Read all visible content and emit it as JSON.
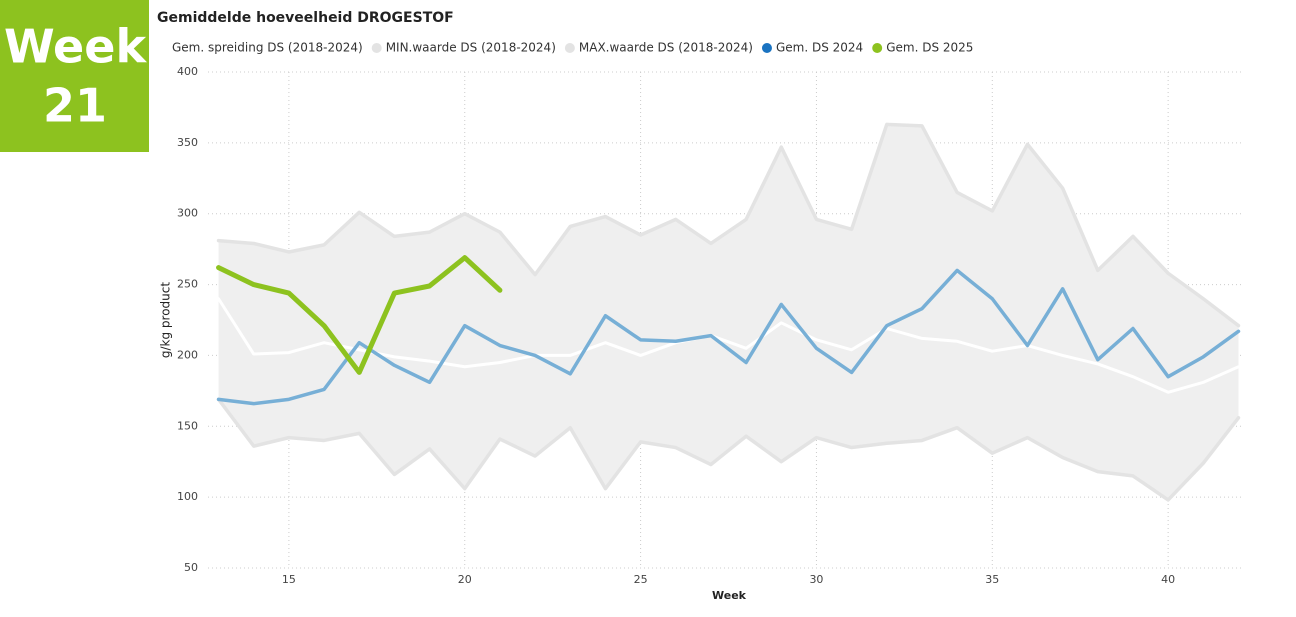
{
  "badge": {
    "word": "Week",
    "number": "21"
  },
  "chart_data": {
    "type": "line",
    "title": "Gemiddelde hoeveelheid DROGESTOF",
    "xlabel": "Week",
    "ylabel": "g/kg product",
    "x": [
      13,
      14,
      15,
      16,
      17,
      18,
      19,
      20,
      21,
      22,
      23,
      24,
      25,
      26,
      27,
      28,
      29,
      30,
      31,
      32,
      33,
      34,
      35,
      36,
      37,
      38,
      39,
      40,
      41,
      42
    ],
    "xlim": [
      12.7,
      42.1
    ],
    "xticks": [
      15,
      20,
      25,
      30,
      35,
      40
    ],
    "ylim": [
      50,
      400
    ],
    "yticks": [
      50,
      100,
      150,
      200,
      250,
      300,
      350,
      400
    ],
    "grid": true,
    "band_color": "#efefef",
    "series": [
      {
        "name": "Gem. spreiding DS (2018-2024)",
        "color": "#ffffff",
        "values": [
          240,
          201,
          202,
          209,
          204,
          199,
          196,
          192,
          195,
          200,
          200,
          209,
          200,
          209,
          214,
          205,
          223,
          211,
          204,
          219,
          212,
          210,
          203,
          207,
          200,
          194,
          185,
          174,
          181,
          192
        ]
      },
      {
        "name": "MIN.waarde DS (2018-2024)",
        "color": "#e3e3e3",
        "values": [
          169,
          136,
          142,
          140,
          145,
          116,
          134,
          106,
          141,
          129,
          149,
          106,
          139,
          135,
          123,
          143,
          125,
          142,
          135,
          138,
          140,
          149,
          131,
          142,
          128,
          118,
          115,
          98,
          124,
          156
        ]
      },
      {
        "name": "MAX.waarde DS (2018-2024)",
        "color": "#e3e3e3",
        "values": [
          281,
          279,
          273,
          278,
          301,
          284,
          287,
          300,
          287,
          257,
          291,
          298,
          285,
          296,
          279,
          296,
          347,
          296,
          289,
          363,
          362,
          315,
          302,
          349,
          318,
          260,
          284,
          258,
          240,
          221
        ]
      },
      {
        "name": "Gem. DS 2024",
        "color": "#77afd6",
        "values": [
          169,
          166,
          169,
          176,
          209,
          193,
          181,
          221,
          207,
          200,
          187,
          228,
          211,
          210,
          214,
          195,
          236,
          205,
          188,
          221,
          233,
          260,
          240,
          207,
          247,
          197,
          219,
          185,
          199,
          217
        ]
      },
      {
        "name": "Gem. DS 2025",
        "color": "#8dc21f",
        "values": [
          262,
          250,
          244,
          221,
          188,
          244,
          249,
          269,
          246,
          null,
          null,
          null,
          null,
          null,
          null,
          null,
          null,
          null,
          null,
          null,
          null,
          null,
          null,
          null,
          null,
          null,
          null,
          null,
          null,
          null
        ]
      }
    ]
  }
}
